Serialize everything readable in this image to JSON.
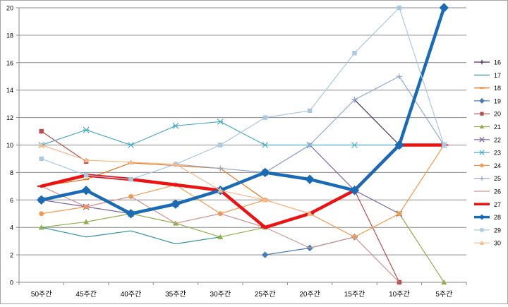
{
  "chart_data": {
    "type": "line",
    "categories": [
      "50주간",
      "45주간",
      "40주간",
      "35주간",
      "30주간",
      "25주간",
      "20주간",
      "15주간",
      "10주간",
      "5주간"
    ],
    "ylim": [
      0,
      20
    ],
    "y_ticks": [
      "0",
      "2",
      "4",
      "6",
      "8",
      "10",
      "12",
      "14",
      "16",
      "18",
      "20"
    ],
    "grid": "horizontal",
    "legend_position": "right",
    "series": [
      {
        "name": "16",
        "color": "#4b2b5e",
        "marker": "plus",
        "width": 1.2,
        "values": [
          null,
          null,
          null,
          null,
          null,
          null,
          null,
          13.3,
          10,
          null
        ]
      },
      {
        "name": "17",
        "color": "#2f8fa6",
        "marker": "none",
        "width": 1.2,
        "values": [
          4,
          3.3,
          3.75,
          2.8,
          3.3,
          null,
          null,
          null,
          null,
          null
        ]
      },
      {
        "name": "18",
        "color": "#e8741a",
        "marker": "dash",
        "width": 1.2,
        "values": [
          7,
          7.5,
          8.7,
          8.5,
          8.3,
          6,
          null,
          null,
          null,
          null
        ]
      },
      {
        "name": "19",
        "color": "#4a7ab8",
        "marker": "diamond",
        "width": 1.2,
        "values": [
          null,
          null,
          null,
          null,
          null,
          2,
          2.5,
          3.3,
          null,
          null
        ]
      },
      {
        "name": "20",
        "color": "#b84c4a",
        "marker": "square",
        "width": 1.2,
        "values": [
          11,
          8.8,
          null,
          null,
          null,
          null,
          null,
          6.7,
          0,
          null
        ]
      },
      {
        "name": "21",
        "color": "#8db04a",
        "marker": "triangle",
        "width": 1.2,
        "values": [
          4,
          4.4,
          5,
          4.3,
          3.3,
          4,
          null,
          null,
          5,
          0
        ]
      },
      {
        "name": "22",
        "color": "#7a62a0",
        "marker": "x",
        "width": 1.2,
        "values": [
          6,
          5.5,
          5,
          5.7,
          6.7,
          8,
          10,
          6.7,
          5,
          null
        ]
      },
      {
        "name": "23",
        "color": "#4cacc6",
        "marker": "star",
        "width": 1.2,
        "values": [
          10,
          11.1,
          10,
          11.4,
          11.7,
          10,
          10,
          10,
          10,
          10
        ]
      },
      {
        "name": "24",
        "color": "#f39a4a",
        "marker": "circle",
        "width": 1.2,
        "values": [
          5,
          5.5,
          6.25,
          7.1,
          5,
          6,
          5,
          3.3,
          5,
          10
        ]
      },
      {
        "name": "25",
        "color": "#93a9cf",
        "marker": "plus",
        "width": 1.2,
        "values": [
          null,
          null,
          null,
          8.6,
          8.3,
          8,
          10,
          13.3,
          15,
          10
        ]
      },
      {
        "name": "26",
        "color": "#d09392",
        "marker": "none",
        "width": 1.2,
        "values": [
          7,
          5.5,
          6.25,
          4.3,
          5,
          4,
          2.5,
          3.3,
          0,
          null
        ]
      },
      {
        "name": "27",
        "color": "#ee1111",
        "marker": "dash",
        "width": 4.5,
        "values": [
          7,
          7.8,
          7.5,
          7.1,
          6.7,
          4,
          5,
          6.7,
          10,
          10
        ]
      },
      {
        "name": "28",
        "color": "#1a6bb5",
        "marker": "diamond",
        "width": 4.5,
        "values": [
          6,
          6.7,
          5,
          5.7,
          6.7,
          8,
          7.5,
          6.7,
          10,
          20
        ]
      },
      {
        "name": "29",
        "color": "#a9c8e2",
        "marker": "square",
        "width": 1.2,
        "values": [
          9,
          7.8,
          7.5,
          8.6,
          10,
          12,
          12.5,
          16.7,
          20,
          10
        ]
      },
      {
        "name": "30",
        "color": "#f7b98a",
        "marker": "triangle",
        "width": 1.2,
        "values": [
          10,
          8.9,
          8.75,
          8.6,
          6.7,
          6,
          5,
          null,
          null,
          null
        ]
      }
    ]
  }
}
